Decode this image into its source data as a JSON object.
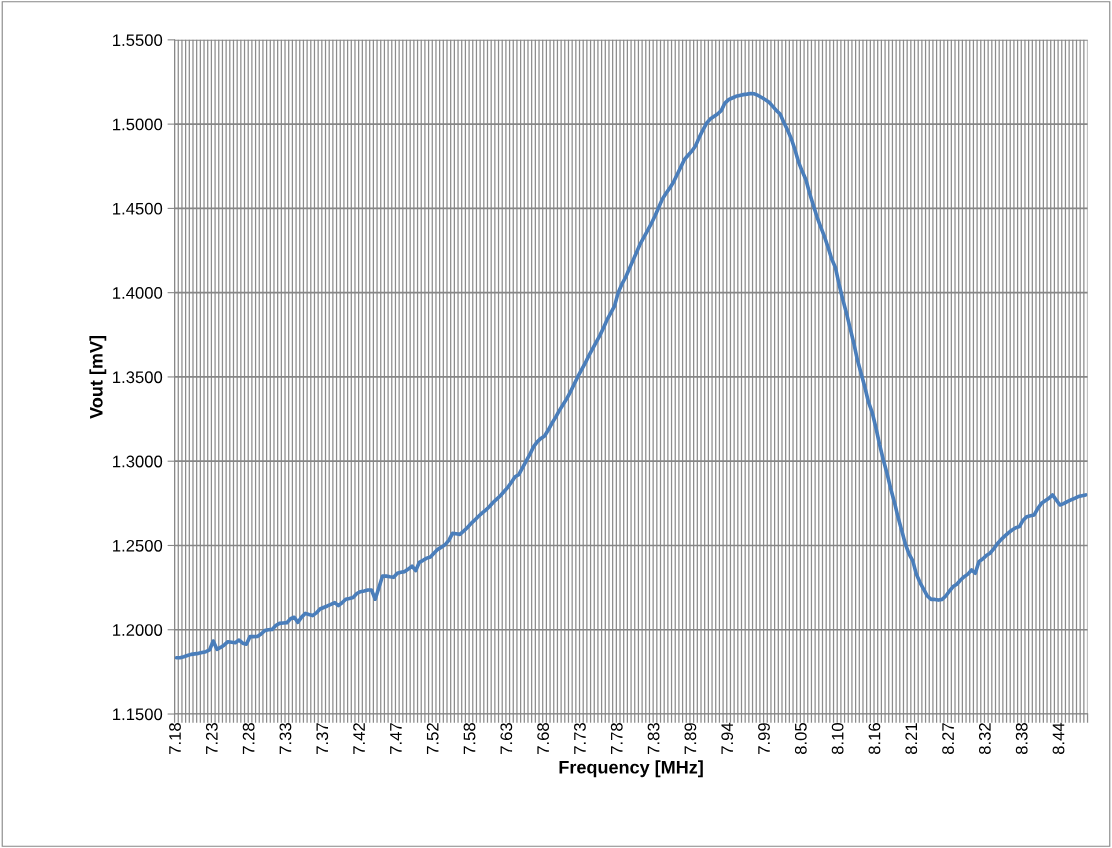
{
  "chart_data": {
    "type": "line",
    "xlabel": "Frequency [MHz]",
    "ylabel": "Vout [mV]",
    "categories": [
      "7.18",
      null,
      null,
      null,
      null,
      null,
      null,
      null,
      null,
      null,
      "7.23",
      null,
      null,
      null,
      null,
      null,
      null,
      null,
      null,
      null,
      "7.28",
      null,
      null,
      null,
      null,
      null,
      null,
      null,
      null,
      null,
      "7.33",
      null,
      null,
      null,
      null,
      null,
      null,
      null,
      null,
      null,
      "7.37",
      null,
      null,
      null,
      null,
      null,
      null,
      null,
      null,
      null,
      "7.42",
      null,
      null,
      null,
      null,
      null,
      null,
      null,
      null,
      null,
      "7.47",
      null,
      null,
      null,
      null,
      null,
      null,
      null,
      null,
      null,
      "7.52",
      null,
      null,
      null,
      null,
      null,
      null,
      null,
      null,
      null,
      "7.58",
      null,
      null,
      null,
      null,
      null,
      null,
      null,
      null,
      null,
      "7.63",
      null,
      null,
      null,
      null,
      null,
      null,
      null,
      null,
      null,
      "7.68",
      null,
      null,
      null,
      null,
      null,
      null,
      null,
      null,
      null,
      "7.73",
      null,
      null,
      null,
      null,
      null,
      null,
      null,
      null,
      null,
      "7.78",
      null,
      null,
      null,
      null,
      null,
      null,
      null,
      null,
      null,
      "7.83",
      null,
      null,
      null,
      null,
      null,
      null,
      null,
      null,
      null,
      "7.89",
      null,
      null,
      null,
      null,
      null,
      null,
      null,
      null,
      null,
      "7.94",
      null,
      null,
      null,
      null,
      null,
      null,
      null,
      null,
      null,
      "7.99",
      null,
      null,
      null,
      null,
      null,
      null,
      null,
      null,
      null,
      "8.05",
      null,
      null,
      null,
      null,
      null,
      null,
      null,
      null,
      null,
      "8.10",
      null,
      null,
      null,
      null,
      null,
      null,
      null,
      null,
      null,
      "8.16",
      null,
      null,
      null,
      null,
      null,
      null,
      null,
      null,
      null,
      "8.21",
      null,
      null,
      null,
      null,
      null,
      null,
      null,
      null,
      null,
      "8.27",
      null,
      null,
      null,
      null,
      null,
      null,
      null,
      null,
      null,
      "8.32",
      null,
      null,
      null,
      null,
      null,
      null,
      null,
      null,
      null,
      "8.38",
      null,
      null,
      null,
      null,
      null,
      null,
      null,
      null,
      null,
      "8.44",
      null,
      null,
      null,
      null,
      null,
      null,
      null
    ],
    "series": [
      {
        "color": "#4a7ebb",
        "values": [
          1.1834,
          1.1834,
          1.184,
          1.1847,
          1.1854,
          1.1857,
          1.186,
          1.1865,
          1.187,
          1.188,
          1.1933,
          1.1884,
          1.1895,
          1.191,
          1.1929,
          1.1926,
          1.1923,
          1.1939,
          1.192,
          1.1914,
          1.1959,
          1.1959,
          1.196,
          1.1975,
          1.1995,
          1.2,
          1.2002,
          1.2025,
          1.2038,
          1.204,
          1.2042,
          1.2065,
          1.2074,
          1.2044,
          1.2075,
          1.2097,
          1.209,
          1.2084,
          1.21,
          1.2123,
          1.2132,
          1.2141,
          1.2151,
          1.2161,
          1.2143,
          1.216,
          1.2181,
          1.2186,
          1.2192,
          1.2215,
          1.2226,
          1.223,
          1.2236,
          1.2236,
          1.2181,
          1.225,
          1.2319,
          1.2318,
          1.2314,
          1.2311,
          1.2335,
          1.2341,
          1.2345,
          1.236,
          1.2378,
          1.2351,
          1.24,
          1.2412,
          1.2425,
          1.2432,
          1.2455,
          1.2477,
          1.249,
          1.2505,
          1.253,
          1.2572,
          1.257,
          1.2566,
          1.2585,
          1.2605,
          1.263,
          1.265,
          1.2672,
          1.2692,
          1.271,
          1.273,
          1.2755,
          1.2775,
          1.2795,
          1.282,
          1.2845,
          1.2875,
          1.2908,
          1.292,
          1.296,
          1.3,
          1.304,
          1.3085,
          1.3115,
          1.3135,
          1.315,
          1.3185,
          1.3225,
          1.326,
          1.33,
          1.3335,
          1.337,
          1.341,
          1.3455,
          1.35,
          1.354,
          1.358,
          1.3625,
          1.3665,
          1.3705,
          1.3745,
          1.379,
          1.384,
          1.388,
          1.392,
          1.4,
          1.405,
          1.409,
          1.414,
          1.419,
          1.424,
          1.429,
          1.433,
          1.437,
          1.441,
          1.4455,
          1.4505,
          1.4555,
          1.459,
          1.462,
          1.4655,
          1.47,
          1.4745,
          1.479,
          1.4815,
          1.484,
          1.487,
          1.492,
          1.4965,
          1.5005,
          1.503,
          1.5045,
          1.506,
          1.508,
          1.5125,
          1.5145,
          1.5155,
          1.5165,
          1.517,
          1.5175,
          1.5178,
          1.5182,
          1.518,
          1.517,
          1.5158,
          1.5145,
          1.513,
          1.5105,
          1.508,
          1.506,
          1.501,
          1.4965,
          1.4915,
          1.485,
          1.4775,
          1.472,
          1.467,
          1.459,
          1.452,
          1.445,
          1.439,
          1.4335,
          1.427,
          1.42,
          1.415,
          1.405,
          1.396,
          1.388,
          1.379,
          1.37,
          1.36,
          1.352,
          1.344,
          1.335,
          1.329,
          1.32,
          1.31,
          1.301,
          1.293,
          1.284,
          1.276,
          1.267,
          1.259,
          1.251,
          1.245,
          1.241,
          1.233,
          1.228,
          1.224,
          1.22,
          1.218,
          1.218,
          1.2176,
          1.218,
          1.22,
          1.223,
          1.2256,
          1.227,
          1.2295,
          1.2315,
          1.233,
          1.2355,
          1.2335,
          1.2404,
          1.242,
          1.244,
          1.2454,
          1.248,
          1.251,
          1.2535,
          1.2555,
          1.2575,
          1.2592,
          1.2605,
          1.2612,
          1.265,
          1.2671,
          1.2676,
          1.2681,
          1.272,
          1.275,
          1.2765,
          1.278,
          1.28,
          1.277,
          1.274,
          1.2748,
          1.276,
          1.277,
          1.278,
          1.279,
          1.2795,
          1.28
        ]
      }
    ],
    "ylim": [
      1.15,
      1.55
    ],
    "yticks": [
      {
        "value": 1.15,
        "label": "1.1500"
      },
      {
        "value": 1.2,
        "label": "1.2000"
      },
      {
        "value": 1.25,
        "label": "1.2500"
      },
      {
        "value": 1.3,
        "label": "1.3000"
      },
      {
        "value": 1.35,
        "label": "1.3500"
      },
      {
        "value": 1.4,
        "label": "1.4000"
      },
      {
        "value": 1.45,
        "label": "1.4500"
      },
      {
        "value": 1.5,
        "label": "1.5000"
      },
      {
        "value": 1.55,
        "label": "1.5500"
      }
    ],
    "grid": true,
    "marker": "none",
    "line_style": "solid"
  }
}
